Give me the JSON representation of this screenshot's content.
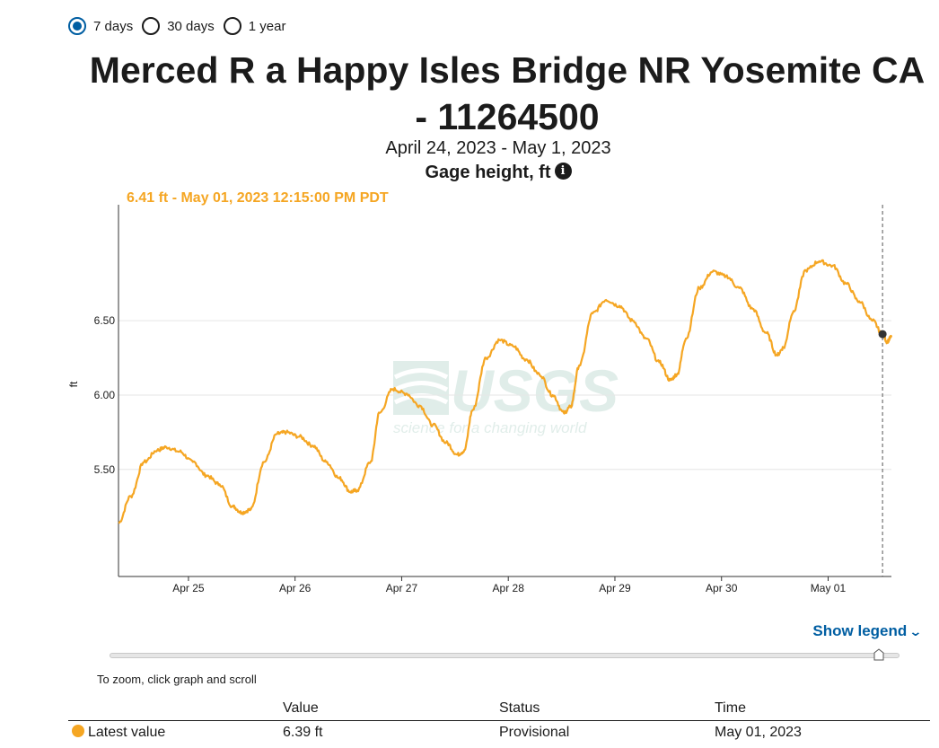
{
  "range_options": [
    {
      "label": "7 days",
      "checked": true
    },
    {
      "label": "30 days",
      "checked": false
    },
    {
      "label": "1 year",
      "checked": false
    }
  ],
  "title_line1": "Merced R a Happy Isles Bridge NR Yosemite CA",
  "title_line2": "- 11264500",
  "date_range": "April 24, 2023 - May 1, 2023",
  "parameter": "Gage height, ft",
  "info_icon": "info-icon",
  "latest_tooltip": "6.41 ft - May 01, 2023 12:15:00 PM PDT",
  "legend_toggle": "Show legend",
  "zoom_hint": "To zoom, click graph and scroll",
  "watermark": {
    "brand": "USGS",
    "tagline": "science for a changing world"
  },
  "colors": {
    "series": "#f5a623",
    "link": "#005ea2",
    "grid": "#e6e6e6"
  },
  "table": {
    "headers": [
      "Value",
      "Status",
      "Time"
    ],
    "rows": [
      {
        "label": "Latest value",
        "value": "6.39 ft",
        "status": "Provisional",
        "time": "May 01, 2023"
      }
    ]
  },
  "chart_data": {
    "type": "line",
    "title": "Merced R a Happy Isles Bridge NR Yosemite CA - 11264500",
    "xlabel": "",
    "ylabel": "ft",
    "x_ticks": [
      "Apr 25",
      "Apr 26",
      "Apr 27",
      "Apr 28",
      "Apr 29",
      "Apr 30",
      "May 01"
    ],
    "y_ticks": [
      5.5,
      6.0,
      6.5
    ],
    "y_tick_labels": [
      "5.50",
      "6.00",
      "6.50"
    ],
    "ylim": [
      4.78,
      7.28
    ],
    "xlim": [
      "2023-04-24 08:15",
      "2023-05-01 14:15"
    ],
    "grid": "horizontal",
    "series": [
      {
        "name": "Gage height, ft",
        "points": [
          [
            "2023-04-24 08:15",
            5.14
          ],
          [
            "2023-04-24 11:00",
            5.32
          ],
          [
            "2023-04-24 14:00",
            5.55
          ],
          [
            "2023-04-24 17:00",
            5.63
          ],
          [
            "2023-04-24 19:00",
            5.65
          ],
          [
            "2023-04-24 22:00",
            5.62
          ],
          [
            "2023-04-25 01:00",
            5.55
          ],
          [
            "2023-04-25 04:00",
            5.46
          ],
          [
            "2023-04-25 07:00",
            5.4
          ],
          [
            "2023-04-25 10:00",
            5.25
          ],
          [
            "2023-04-25 12:00",
            5.21
          ],
          [
            "2023-04-25 14:00",
            5.23
          ],
          [
            "2023-04-25 17:00",
            5.55
          ],
          [
            "2023-04-25 20:00",
            5.74
          ],
          [
            "2023-04-25 22:00",
            5.75
          ],
          [
            "2023-04-26 01:00",
            5.72
          ],
          [
            "2023-04-26 04:00",
            5.66
          ],
          [
            "2023-04-26 07:00",
            5.55
          ],
          [
            "2023-04-26 10:00",
            5.44
          ],
          [
            "2023-04-26 12:30",
            5.35
          ],
          [
            "2023-04-26 14:00",
            5.36
          ],
          [
            "2023-04-26 17:00",
            5.55
          ],
          [
            "2023-04-26 19:00",
            5.88
          ],
          [
            "2023-04-26 22:00",
            6.04
          ],
          [
            "2023-04-27 01:00",
            6.01
          ],
          [
            "2023-04-27 04:00",
            5.93
          ],
          [
            "2023-04-27 07:00",
            5.8
          ],
          [
            "2023-04-27 10:00",
            5.68
          ],
          [
            "2023-04-27 12:30",
            5.6
          ],
          [
            "2023-04-27 14:00",
            5.62
          ],
          [
            "2023-04-27 16:00",
            5.9
          ],
          [
            "2023-04-27 19:00",
            6.25
          ],
          [
            "2023-04-27 22:00",
            6.37
          ],
          [
            "2023-04-28 01:00",
            6.33
          ],
          [
            "2023-04-28 04:00",
            6.24
          ],
          [
            "2023-04-28 07:00",
            6.14
          ],
          [
            "2023-04-28 10:00",
            6.0
          ],
          [
            "2023-04-28 12:30",
            5.88
          ],
          [
            "2023-04-28 14:00",
            5.92
          ],
          [
            "2023-04-28 16:00",
            6.2
          ],
          [
            "2023-04-28 19:00",
            6.55
          ],
          [
            "2023-04-28 22:00",
            6.64
          ],
          [
            "2023-04-29 01:00",
            6.6
          ],
          [
            "2023-04-29 04:00",
            6.5
          ],
          [
            "2023-04-29 07:00",
            6.38
          ],
          [
            "2023-04-29 10:00",
            6.22
          ],
          [
            "2023-04-29 12:30",
            6.1
          ],
          [
            "2023-04-29 14:00",
            6.14
          ],
          [
            "2023-04-29 16:00",
            6.38
          ],
          [
            "2023-04-29 19:00",
            6.72
          ],
          [
            "2023-04-29 22:00",
            6.83
          ],
          [
            "2023-04-30 01:00",
            6.8
          ],
          [
            "2023-04-30 04:00",
            6.72
          ],
          [
            "2023-04-30 07:00",
            6.58
          ],
          [
            "2023-04-30 10:00",
            6.42
          ],
          [
            "2023-04-30 12:30",
            6.27
          ],
          [
            "2023-04-30 14:00",
            6.32
          ],
          [
            "2023-04-30 16:00",
            6.55
          ],
          [
            "2023-04-30 19:00",
            6.84
          ],
          [
            "2023-04-30 22:00",
            6.9
          ],
          [
            "2023-05-01 01:00",
            6.87
          ],
          [
            "2023-05-01 04:00",
            6.75
          ],
          [
            "2023-05-01 07:00",
            6.63
          ],
          [
            "2023-05-01 10:00",
            6.5
          ],
          [
            "2023-05-01 12:15",
            6.41
          ],
          [
            "2023-05-01 13:15",
            6.36
          ],
          [
            "2023-05-01 14:15",
            6.39
          ]
        ]
      }
    ],
    "highlight": {
      "x": "2023-05-01 12:15",
      "y": 6.41
    }
  }
}
